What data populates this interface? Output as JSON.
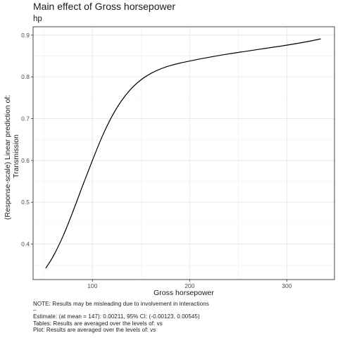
{
  "chart_data": {
    "type": "line",
    "title": "Main effect of Gross horsepower",
    "subtitle": "hp",
    "xlabel": "Gross horsepower",
    "ylabel_lines": [
      "(Response-scale) Linear prediction of:",
      "Transmission"
    ],
    "xlim": [
      39,
      349
    ],
    "ylim": [
      0.315,
      0.92
    ],
    "x_ticks": [
      100,
      200,
      300
    ],
    "y_ticks": [
      0.4,
      0.5,
      0.6,
      0.7,
      0.8,
      0.9
    ],
    "grid": true,
    "series": [
      {
        "color": "#000000",
        "x": [
          52,
          60,
          70,
          80,
          90,
          100,
          110,
          120,
          130,
          140,
          150,
          160,
          170,
          180,
          190,
          200,
          220,
          240,
          260,
          280,
          300,
          320,
          335
        ],
        "y": [
          0.342,
          0.372,
          0.42,
          0.478,
          0.54,
          0.6,
          0.657,
          0.705,
          0.743,
          0.772,
          0.793,
          0.808,
          0.819,
          0.827,
          0.833,
          0.838,
          0.847,
          0.855,
          0.862,
          0.869,
          0.876,
          0.884,
          0.891
        ]
      }
    ]
  },
  "caption_lines": [
    "NOTE: Results may be misleading due to involvement in interactions",
    "–",
    "Estimate: (at mean = 147): 0.00211, 95% CI: (-0.00123, 0.00545)",
    "Tables: Results are averaged over the levels of: vs",
    "Plot: Results are averaged over the levels of: vs"
  ]
}
